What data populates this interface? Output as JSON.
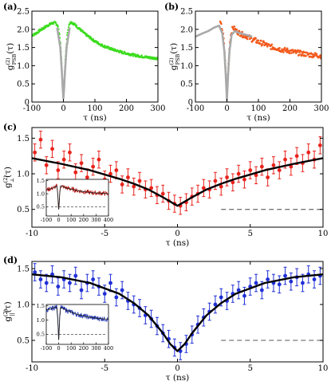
{
  "chart_data": [
    {
      "panel": "(a)",
      "type": "scatter",
      "xlabel": "τ (ns)",
      "ylabel_main": "g",
      "ylabel_sup": "(2)",
      "ylabel_sub": "PSB",
      "ylabel_tail": "(τ)",
      "xlim": [
        -100,
        300
      ],
      "ylim": [
        0,
        2.5
      ],
      "xticks": [
        -100,
        0,
        100,
        200,
        300
      ],
      "yticks": [
        0,
        0.5,
        1.0,
        1.5,
        2.0,
        2.5
      ],
      "ytick_labels": [
        "0",
        "0.5",
        "1.0",
        "1.5",
        "2.0",
        "2.5"
      ],
      "series": [
        {
          "role": "data",
          "color": "#3ddc1f",
          "x": [
            -95,
            -85,
            -75,
            -65,
            -55,
            -45,
            -35,
            -25,
            -18,
            -12,
            -8,
            -5,
            -3,
            -1,
            0,
            1,
            3,
            5,
            8,
            12,
            18,
            25,
            35,
            45,
            55,
            65,
            75,
            85,
            95,
            110,
            125,
            140,
            155,
            170,
            185,
            200,
            215,
            230,
            245,
            260,
            275,
            290,
            298
          ],
          "y": [
            1.85,
            1.9,
            1.97,
            2.02,
            2.08,
            2.13,
            2.17,
            2.18,
            2.1,
            1.85,
            1.45,
            1.0,
            0.6,
            0.25,
            0.1,
            0.25,
            0.6,
            1.0,
            1.45,
            1.85,
            2.15,
            2.2,
            2.14,
            2.06,
            1.98,
            1.9,
            1.83,
            1.77,
            1.7,
            1.62,
            1.55,
            1.5,
            1.45,
            1.41,
            1.37,
            1.34,
            1.31,
            1.28,
            1.26,
            1.24,
            1.22,
            1.21,
            1.2
          ]
        },
        {
          "role": "fit",
          "color": "#a9a9a9",
          "x": [
            -20,
            -10,
            -5,
            -2,
            0,
            2,
            5,
            10,
            20
          ],
          "y": [
            2.05,
            1.5,
            0.85,
            0.35,
            0.1,
            0.35,
            0.85,
            1.5,
            2.05
          ]
        }
      ]
    },
    {
      "panel": "(b)",
      "type": "scatter",
      "xlabel": "τ (ns)",
      "ylabel_main": "g",
      "ylabel_sup": "(2)",
      "ylabel_sub": "PSB",
      "ylabel_tail": "(τ)",
      "xlim": [
        -100,
        300
      ],
      "ylim": [
        0,
        2.5
      ],
      "xticks": [
        -100,
        0,
        100,
        200,
        300
      ],
      "yticks": [
        0,
        0.5,
        1.0,
        1.5,
        2.0,
        2.5
      ],
      "ytick_labels": [
        "0",
        "0.5",
        "1.0",
        "1.5",
        "2.0",
        "2.5"
      ],
      "series": [
        {
          "role": "data",
          "color": "#f25a1d",
          "x": [
            -20,
            -15,
            -10,
            -6,
            -3,
            -1,
            0,
            1,
            3,
            6,
            10,
            15,
            20,
            30,
            40,
            50,
            60,
            70,
            80,
            90,
            100,
            110,
            120,
            130,
            140,
            150,
            160,
            170,
            180,
            190,
            200,
            210,
            220,
            230,
            240,
            250,
            260,
            270,
            280,
            290,
            298
          ],
          "y": [
            2.15,
            2.0,
            1.7,
            1.2,
            0.7,
            0.3,
            0.05,
            0.3,
            0.7,
            1.2,
            1.7,
            1.95,
            2.05,
            1.95,
            1.9,
            1.85,
            1.82,
            1.78,
            1.72,
            1.7,
            1.65,
            1.62,
            1.6,
            1.55,
            1.52,
            1.5,
            1.48,
            1.45,
            1.43,
            1.42,
            1.4,
            1.38,
            1.36,
            1.35,
            1.33,
            1.32,
            1.3,
            1.3,
            1.29,
            1.28,
            1.27
          ]
        },
        {
          "role": "fit",
          "color": "#a9a9a9",
          "x": [
            -100,
            -80,
            -60,
            -40,
            -25,
            -15,
            -8,
            -4,
            -1,
            0,
            1,
            4,
            8,
            15,
            25,
            40,
            60,
            80
          ],
          "y": [
            1.8,
            1.88,
            1.95,
            2.05,
            2.1,
            1.9,
            1.4,
            0.8,
            0.25,
            0.05,
            0.25,
            0.8,
            1.4,
            1.85,
            1.95,
            1.9,
            1.85,
            1.8
          ]
        }
      ]
    },
    {
      "panel": "(c)",
      "type": "scatter",
      "xlabel": "τ (ns)",
      "ylabel_main": "g",
      "ylabel_sup": "(2)",
      "ylabel_sub": "⊥",
      "ylabel_tail": "(τ)",
      "xlim": [
        -10,
        10
      ],
      "ylim": [
        0.25,
        1.65
      ],
      "xticks": [
        -10,
        -5,
        0,
        5,
        10
      ],
      "yticks": [
        0.5,
        1.0,
        1.5
      ],
      "ytick_labels": [
        "0.5",
        "1.0",
        "1.5"
      ],
      "reference_level": 0.5,
      "series": [
        {
          "role": "data",
          "color": "#e8231c",
          "x": [
            -9.8,
            -9.4,
            -9.0,
            -8.6,
            -8.2,
            -7.8,
            -7.4,
            -7.0,
            -6.6,
            -6.2,
            -5.8,
            -5.4,
            -5.0,
            -4.6,
            -4.2,
            -3.8,
            -3.4,
            -3.0,
            -2.6,
            -2.2,
            -1.8,
            -1.4,
            -1.0,
            -0.6,
            -0.2,
            0.2,
            0.6,
            1.0,
            1.4,
            1.8,
            2.2,
            2.6,
            3.0,
            3.4,
            3.8,
            4.2,
            4.6,
            5.0,
            5.4,
            5.8,
            6.2,
            6.6,
            7.0,
            7.4,
            7.8,
            8.2,
            8.6,
            9.0,
            9.4,
            9.8
          ],
          "y": [
            1.3,
            1.48,
            1.12,
            1.35,
            1.05,
            1.2,
            1.3,
            1.02,
            1.15,
            0.95,
            1.1,
            1.2,
            0.92,
            1.0,
            1.05,
            0.85,
            0.95,
            0.82,
            0.9,
            0.78,
            0.8,
            0.7,
            0.72,
            0.62,
            0.58,
            0.55,
            0.6,
            0.68,
            0.72,
            0.8,
            0.78,
            0.9,
            0.82,
            0.95,
            0.88,
            1.0,
            0.92,
            1.05,
            0.98,
            1.1,
            0.95,
            1.12,
            1.05,
            1.2,
            1.1,
            1.25,
            1.15,
            1.3,
            1.2,
            1.4
          ],
          "yerr": 0.12
        },
        {
          "role": "fit",
          "color": "#000000",
          "x": [
            -10,
            -8,
            -6,
            -4,
            -3,
            -2,
            -1,
            -0.5,
            0,
            0.5,
            1,
            2,
            3,
            4,
            6,
            8,
            10
          ],
          "y": [
            1.22,
            1.14,
            1.05,
            0.93,
            0.86,
            0.78,
            0.67,
            0.61,
            0.55,
            0.61,
            0.67,
            0.78,
            0.86,
            0.93,
            1.05,
            1.14,
            1.22
          ]
        }
      ],
      "inset": {
        "xlim": [
          -100,
          400
        ],
        "ylim": [
          0.15,
          1.55
        ],
        "xticks": [
          -100,
          0,
          100,
          200,
          300,
          400
        ],
        "xtick_labels": [
          "-100",
          "0",
          "100",
          "200",
          "300",
          "400"
        ],
        "yticks": [
          0.5,
          1.0,
          1.5
        ],
        "ytick_labels": [
          "0.5",
          "1.0",
          "1.5"
        ],
        "reference_level": 0.5,
        "color": "#b8120f",
        "x": [
          -100,
          -60,
          -30,
          -15,
          -8,
          -3,
          0,
          3,
          8,
          15,
          30,
          60,
          100,
          150,
          200,
          250,
          300,
          350,
          400
        ],
        "y": [
          1.15,
          1.2,
          1.25,
          1.3,
          1.0,
          0.6,
          0.4,
          0.6,
          1.0,
          1.3,
          1.28,
          1.22,
          1.18,
          1.12,
          1.08,
          1.05,
          1.03,
          1.02,
          1.0
        ]
      }
    },
    {
      "panel": "(d)",
      "type": "scatter",
      "xlabel": "τ (ns)",
      "ylabel_main": "g",
      "ylabel_sup": "(2)",
      "ylabel_sub": "||",
      "ylabel_tail": "(τ)",
      "xlim": [
        -10,
        10
      ],
      "ylim": [
        0.2,
        1.6
      ],
      "xticks": [
        -10,
        -5,
        0,
        5,
        10
      ],
      "yticks": [
        0.5,
        1.0,
        1.5
      ],
      "ytick_labels": [
        "0.5",
        "1.0",
        "1.5"
      ],
      "reference_level": 0.5,
      "series": [
        {
          "role": "data",
          "color": "#1f2fd6",
          "x": [
            -9.8,
            -9.4,
            -9.0,
            -8.6,
            -8.2,
            -7.8,
            -7.4,
            -7.0,
            -6.6,
            -6.2,
            -5.8,
            -5.4,
            -5.0,
            -4.6,
            -4.2,
            -3.8,
            -3.4,
            -3.0,
            -2.6,
            -2.2,
            -1.8,
            -1.4,
            -1.0,
            -0.6,
            -0.2,
            0.2,
            0.6,
            1.0,
            1.4,
            1.8,
            2.2,
            2.6,
            3.0,
            3.4,
            3.8,
            4.2,
            4.6,
            5.0,
            5.4,
            5.8,
            6.2,
            6.6,
            7.0,
            7.4,
            7.8,
            8.2,
            8.6,
            9.0,
            9.4,
            9.8
          ],
          "y": [
            1.45,
            1.35,
            1.3,
            1.42,
            1.25,
            1.35,
            1.3,
            1.4,
            1.2,
            1.3,
            1.35,
            1.25,
            1.15,
            1.3,
            1.1,
            1.2,
            1.05,
            1.0,
            0.95,
            0.85,
            0.8,
            0.7,
            0.6,
            0.52,
            0.4,
            0.35,
            0.45,
            0.58,
            0.72,
            0.82,
            0.9,
            1.0,
            1.1,
            1.05,
            1.15,
            1.2,
            1.12,
            1.25,
            1.3,
            1.2,
            1.35,
            1.3,
            1.28,
            1.4,
            1.32,
            1.38,
            1.3,
            1.42,
            1.35,
            1.4
          ],
          "yerr": 0.12
        },
        {
          "role": "fit",
          "color": "#000000",
          "x": [
            -10,
            -8,
            -6,
            -4,
            -3,
            -2,
            -1,
            -0.5,
            0,
            0.5,
            1,
            2,
            3,
            4,
            6,
            8,
            10
          ],
          "y": [
            1.42,
            1.38,
            1.3,
            1.15,
            1.02,
            0.85,
            0.6,
            0.45,
            0.35,
            0.45,
            0.6,
            0.85,
            1.02,
            1.15,
            1.3,
            1.38,
            1.42
          ]
        }
      ],
      "inset": {
        "xlim": [
          -100,
          400
        ],
        "ylim": [
          0.15,
          1.55
        ],
        "xticks": [
          -100,
          0,
          100,
          200,
          300,
          400
        ],
        "xtick_labels": [
          "-100",
          "0",
          "100",
          "200",
          "300",
          "400"
        ],
        "yticks": [
          0.5,
          1.0,
          1.5
        ],
        "ytick_labels": [
          "0.5",
          "1.0",
          "1.5"
        ],
        "reference_level": 0.5,
        "color": "#1a2fb0",
        "x": [
          -100,
          -60,
          -30,
          -15,
          -8,
          -3,
          0,
          3,
          8,
          15,
          30,
          60,
          100,
          150,
          200,
          250,
          300,
          350,
          400
        ],
        "y": [
          1.35,
          1.4,
          1.45,
          1.45,
          1.1,
          0.6,
          0.3,
          0.6,
          1.1,
          1.45,
          1.42,
          1.35,
          1.28,
          1.2,
          1.15,
          1.1,
          1.07,
          1.05,
          1.03
        ]
      }
    }
  ]
}
